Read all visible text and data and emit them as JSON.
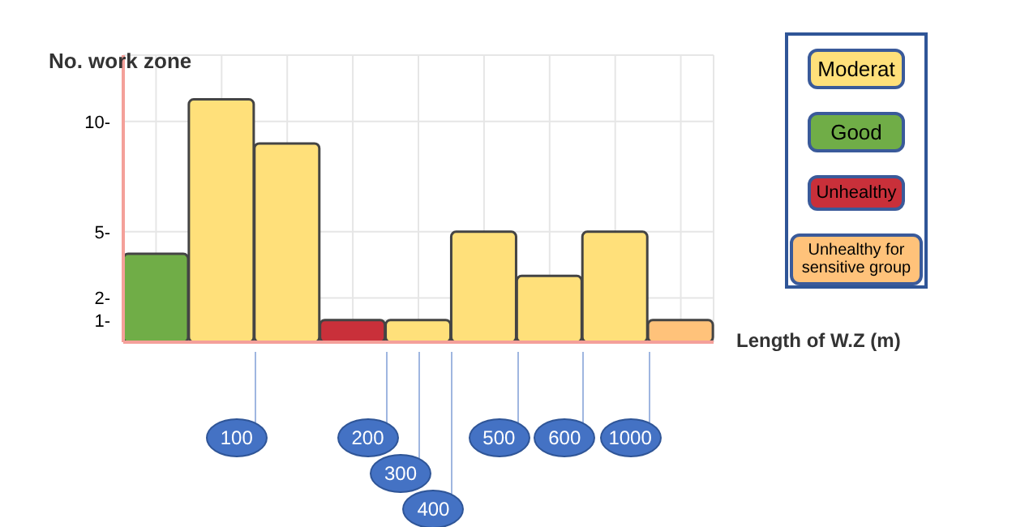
{
  "chart_data": {
    "type": "bar",
    "ylabel": "No. work zone",
    "xlabel": "Length of W.Z (m)",
    "categories": [
      null,
      null,
      null,
      null,
      null,
      null,
      null,
      null,
      null
    ],
    "stacked": true,
    "series": [
      {
        "name": "Moderat",
        "color": "#ffe07a",
        "values": [
          null,
          11,
          9,
          null,
          1,
          5,
          3,
          5,
          null
        ]
      },
      {
        "name": "Good",
        "color": "#70ad47",
        "values": [
          4,
          null,
          null,
          null,
          null,
          null,
          null,
          null,
          null
        ]
      },
      {
        "name": "Unhealthy",
        "color": "#c9303a",
        "values": [
          null,
          null,
          null,
          1,
          null,
          null,
          null,
          null,
          null
        ]
      },
      {
        "name": "Unhealthy for sensitive group",
        "color": "#ffc27a",
        "values": [
          null,
          null,
          null,
          null,
          null,
          null,
          null,
          null,
          1
        ]
      }
    ],
    "ylim": [
      0,
      13
    ],
    "yticks": [
      {
        "value": 1,
        "label": "1-"
      },
      {
        "value": 2,
        "label": "2-"
      },
      {
        "value": 5,
        "label": "5-"
      },
      {
        "value": 10,
        "label": "10-"
      }
    ],
    "grid": true,
    "legend": "right",
    "annotations": [
      "100",
      "200",
      "300",
      "400",
      "500",
      "600",
      "1000"
    ]
  }
}
